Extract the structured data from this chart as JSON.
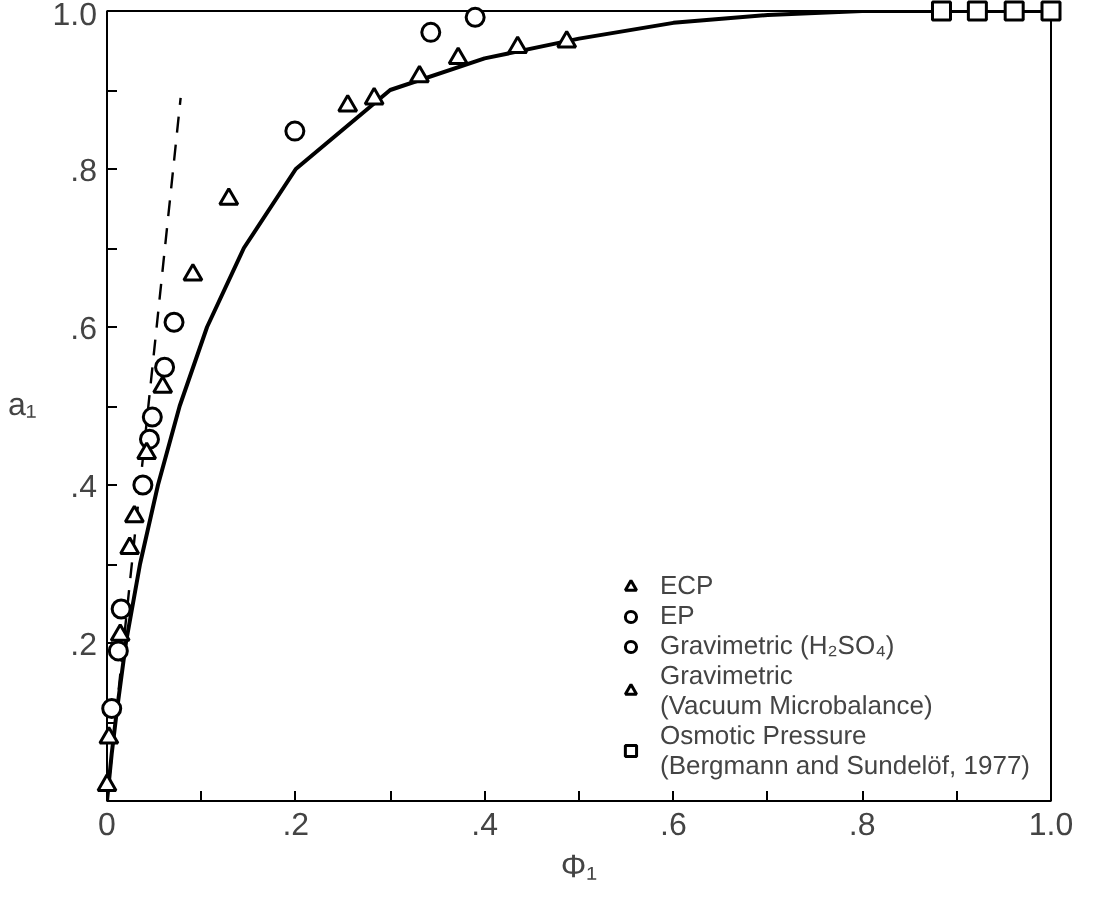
{
  "chart_data": {
    "type": "scatter",
    "xlabel": "Φ₁",
    "ylabel": "a₁",
    "xlim": [
      0,
      1
    ],
    "ylim": [
      0,
      1
    ],
    "xticks": [
      0,
      {
        "value": 0.1,
        "label": null
      },
      {
        "value": 0.2,
        "label": ".2"
      },
      {
        "value": 0.3,
        "label": null
      },
      {
        "value": 0.4,
        "label": ".4"
      },
      {
        "value": 0.5,
        "label": null
      },
      {
        "value": 0.6,
        "label": ".6"
      },
      {
        "value": 0.7,
        "label": null
      },
      {
        "value": 0.8,
        "label": ".8"
      },
      {
        "value": 0.9,
        "label": null
      },
      {
        "value": 1.0,
        "label": "1.0"
      }
    ],
    "yticks": [
      {
        "value": 0,
        "label": null
      },
      {
        "value": 0.1,
        "label": null
      },
      {
        "value": 0.2,
        "label": ".2"
      },
      {
        "value": 0.3,
        "label": null
      },
      {
        "value": 0.4,
        "label": ".4"
      },
      {
        "value": 0.5,
        "label": null
      },
      {
        "value": 0.6,
        "label": ".6"
      },
      {
        "value": 0.7,
        "label": null
      },
      {
        "value": 0.8,
        "label": ".8"
      },
      {
        "value": 0.9,
        "label": null
      },
      {
        "value": 1.0,
        "label": "1.0"
      }
    ],
    "grid": false,
    "legend": "bottom right",
    "series": [
      {
        "type": "line",
        "color": "#000000",
        "line_style": "solid",
        "x": [
          0,
          0.005,
          0.01,
          0.02,
          0.035,
          0.054,
          0.077,
          0.106,
          0.145,
          0.2,
          0.25,
          0.3,
          0.4,
          0.5,
          0.6,
          0.7,
          0.8,
          1.0
        ],
        "values": [
          0,
          0.06,
          0.11,
          0.2,
          0.3,
          0.4,
          0.5,
          0.6,
          0.7,
          0.8,
          0.85,
          0.9,
          0.94,
          0.965,
          0.985,
          0.995,
          1.0,
          1.0
        ]
      },
      {
        "type": "line",
        "color": "#000000",
        "line_style": "dashed",
        "x": [
          0,
          0.078
        ],
        "values": [
          0,
          0.89
        ]
      },
      {
        "name": "ECP",
        "marker": "triangle",
        "color": "#000000",
        "x": [
          0.0,
          0.002,
          0.014,
          0.029
        ],
        "values": [
          0.02,
          0.08,
          0.21,
          0.36
        ]
      },
      {
        "name": "EP",
        "marker": "circle",
        "color": "#000000",
        "x": [
          0.005,
          0.012,
          0.015,
          0.038,
          0.048,
          0.061,
          0.071
        ],
        "values": [
          0.117,
          0.19,
          0.243,
          0.4,
          0.486,
          0.549,
          0.606
        ]
      },
      {
        "name": "Gravimetric (H₂SO₄)",
        "marker": "circle",
        "color": "#000000",
        "x": [
          0.045,
          0.199,
          0.343,
          0.39
        ],
        "values": [
          0.458,
          0.848,
          0.973,
          0.992
        ]
      },
      {
        "name": "Gravimetric\n(Vacuum Microbalance)",
        "marker": "triangle",
        "color": "#000000",
        "x": [
          0.024,
          0.042,
          0.059,
          0.091,
          0.129,
          0.255,
          0.283,
          0.331,
          0.372,
          0.435,
          0.487
        ],
        "values": [
          0.32,
          0.44,
          0.524,
          0.666,
          0.762,
          0.88,
          0.889,
          0.917,
          0.94,
          0.954,
          0.961
        ]
      },
      {
        "name": "Osmotic Pressure\n(Bergmann and Sundelöf, 1977)",
        "marker": "square",
        "color": "#000000",
        "x": [
          0.884,
          0.922,
          0.961,
          1.0
        ],
        "values": [
          1.0,
          1.0,
          1.0,
          1.0
        ]
      }
    ]
  }
}
